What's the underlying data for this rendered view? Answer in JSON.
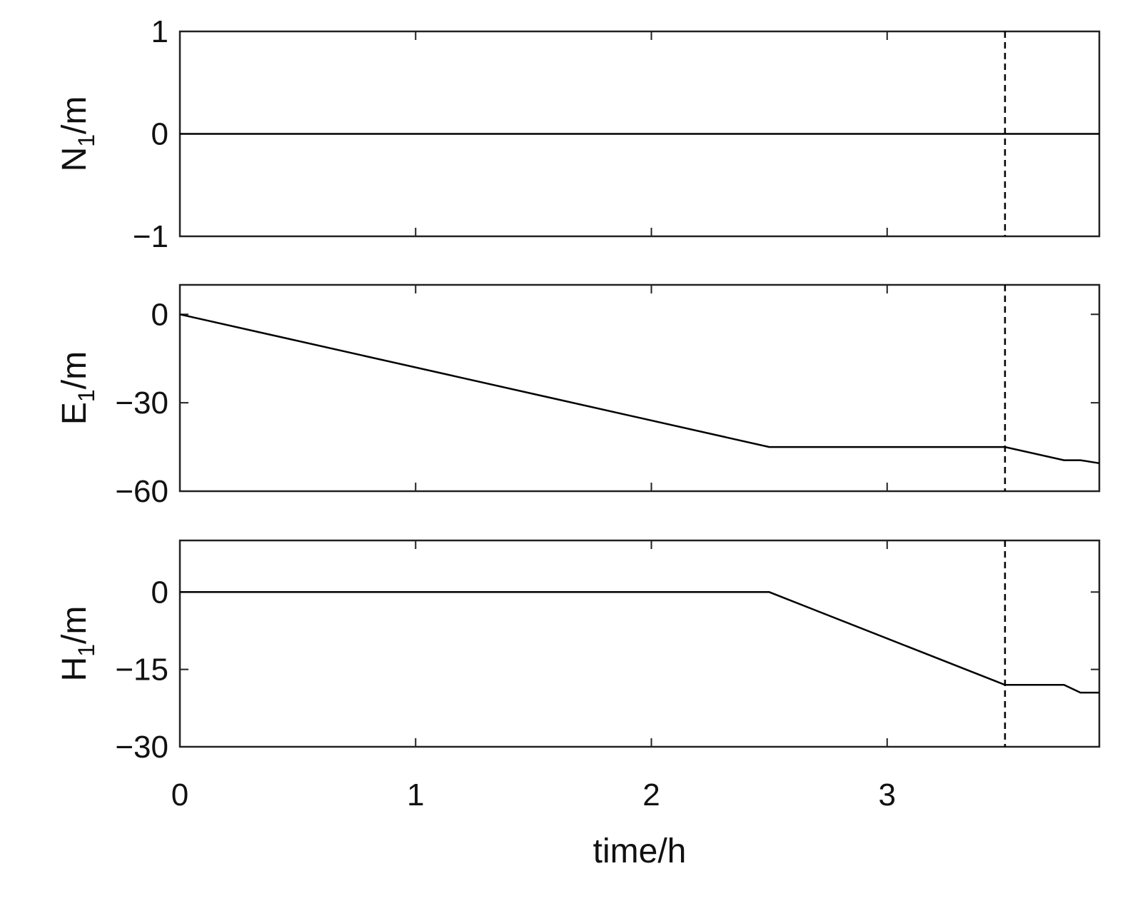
{
  "chart_data": [
    {
      "type": "line",
      "id": "N",
      "ylabel_main": "N",
      "ylabel_sub": "1",
      "ylabel_unit": "/m",
      "ylim": [
        -1,
        1
      ],
      "yticks": [
        -1,
        0,
        1
      ],
      "ytick_labels": [
        "−1",
        "0",
        "1"
      ],
      "xlim": [
        0,
        3.9
      ],
      "series": [
        {
          "x": [
            0,
            3.9
          ],
          "y": [
            0,
            0
          ]
        }
      ]
    },
    {
      "type": "line",
      "id": "E",
      "ylabel_main": "E",
      "ylabel_sub": "1",
      "ylabel_unit": "/m",
      "ylim": [
        -60,
        10
      ],
      "yticks": [
        -60,
        -30,
        0
      ],
      "ytick_labels": [
        "−60",
        "−30",
        "0"
      ],
      "xlim": [
        0,
        3.9
      ],
      "series": [
        {
          "x": [
            0,
            2.5,
            3.5,
            3.75,
            3.82,
            3.9
          ],
          "y": [
            0,
            -45,
            -45,
            -49.5,
            -49.5,
            -50.5
          ]
        }
      ]
    },
    {
      "type": "line",
      "id": "H",
      "ylabel_main": "H",
      "ylabel_sub": "1",
      "ylabel_unit": "/m",
      "ylim": [
        -30,
        10
      ],
      "yticks": [
        -30,
        -15,
        0
      ],
      "ytick_labels": [
        "−30",
        "−15",
        "0"
      ],
      "xlim": [
        0,
        3.9
      ],
      "xlabel": "time/h",
      "xticks": [
        0,
        1,
        2,
        3
      ],
      "xtick_labels": [
        "0",
        "1",
        "2",
        "3"
      ],
      "series": [
        {
          "x": [
            0,
            2.5,
            3.5,
            3.75,
            3.82,
            3.9
          ],
          "y": [
            0,
            0,
            -18,
            -18,
            -19.5,
            -19.5
          ]
        }
      ]
    }
  ],
  "marker_x": 3.5,
  "shared_xlim": [
    0,
    3.9
  ],
  "grid": false,
  "legend": "none"
}
